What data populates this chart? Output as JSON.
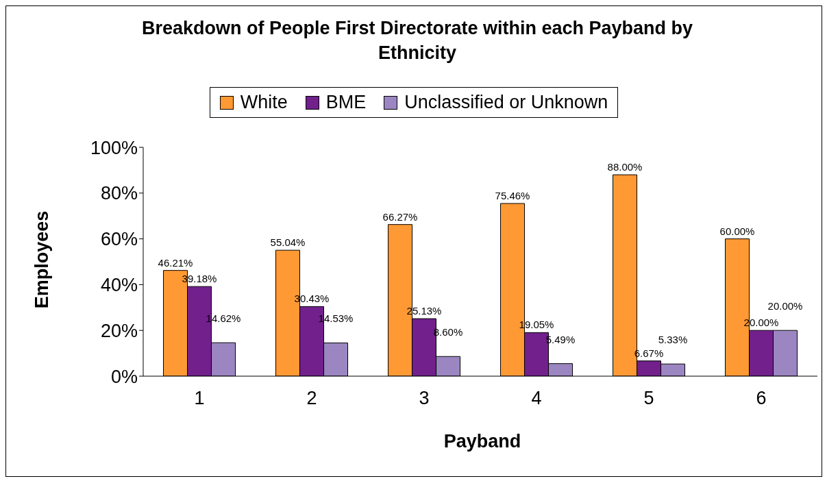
{
  "chart_data": {
    "type": "bar",
    "title": "Breakdown of People First Directorate within each Payband by Ethnicity",
    "xlabel": "Payband",
    "ylabel": "Employees",
    "categories": [
      "1",
      "2",
      "3",
      "4",
      "5",
      "6"
    ],
    "series": [
      {
        "name": "White",
        "color": "#ff9933",
        "values": [
          46.21,
          55.04,
          66.27,
          75.46,
          88.0,
          60.0
        ],
        "value_labels": [
          "46.21%",
          "55.04%",
          "66.27%",
          "75.46%",
          "88.00%",
          "60.00%"
        ]
      },
      {
        "name": "BME",
        "color": "#71208c",
        "values": [
          39.18,
          30.43,
          25.13,
          19.05,
          6.67,
          20.0
        ],
        "value_labels": [
          "39.18%",
          "30.43%",
          "25.13%",
          "19.05%",
          "6.67%",
          "20.00%"
        ]
      },
      {
        "name": "Unclassified or Unknown",
        "color": "#9b86c2",
        "values": [
          14.62,
          14.53,
          8.6,
          5.49,
          5.33,
          20.0
        ],
        "value_labels": [
          "14.62%",
          "14.53%",
          "8.60%",
          "5.49%",
          "5.33%",
          "20.00%"
        ]
      }
    ],
    "ylim": [
      0,
      100
    ],
    "yticks": [
      {
        "value": 0,
        "label": "0%"
      },
      {
        "value": 20,
        "label": "20%"
      },
      {
        "value": 40,
        "label": "40%"
      },
      {
        "value": 60,
        "label": "60%"
      },
      {
        "value": 80,
        "label": "80%"
      },
      {
        "value": 100,
        "label": "100%"
      }
    ],
    "grid": false,
    "legend": "top"
  }
}
